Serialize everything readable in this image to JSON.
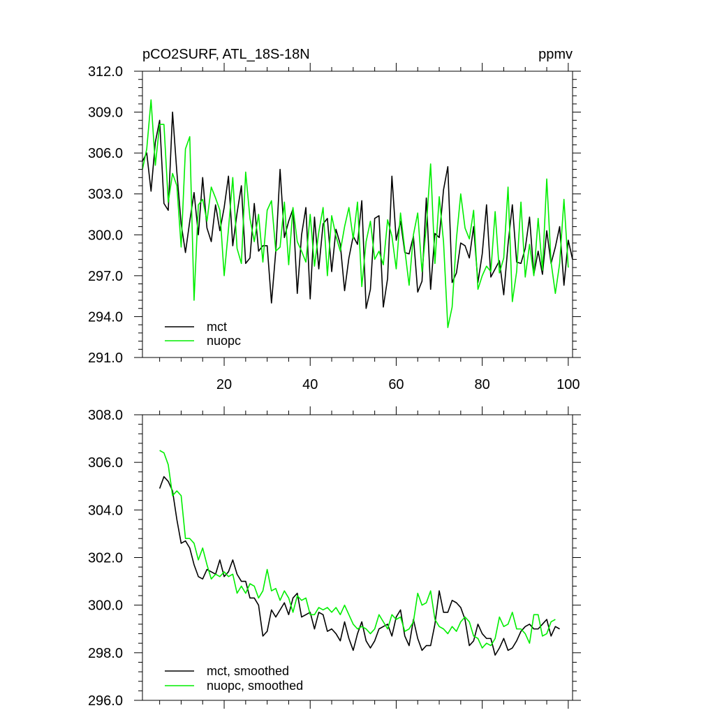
{
  "colors": {
    "mct": "#000000",
    "nuopc": "#00ee00",
    "axis": "#000000",
    "background": "#ffffff"
  },
  "chart_data": [
    {
      "type": "line",
      "title": "pCO2SURF, ATL_18S-18N",
      "units": "ppmv",
      "xlim": [
        1,
        101
      ],
      "ylim": [
        291,
        312
      ],
      "yticks": [
        291,
        294,
        297,
        300,
        303,
        306,
        309,
        312
      ],
      "ytick_labels": [
        "291.0",
        "294.0",
        "297.0",
        "300.0",
        "303.0",
        "306.0",
        "309.0",
        "312.0"
      ],
      "xticks": [
        20,
        40,
        60,
        80,
        100
      ],
      "xtick_labels": [
        "20",
        "40",
        "60",
        "80",
        "100"
      ],
      "legend_position": "bottom-left",
      "series": [
        {
          "name": "mct",
          "label": "mct",
          "color": "#000000",
          "x_start": 1,
          "values": [
            305.4,
            306.0,
            303.2,
            306.8,
            308.4,
            302.3,
            301.8,
            309.0,
            304.6,
            300.8,
            298.7,
            301.0,
            303.1,
            300.0,
            304.2,
            300.5,
            299.5,
            302.2,
            300.3,
            302.0,
            304.3,
            299.2,
            301.6,
            303.6,
            297.9,
            298.3,
            302.3,
            298.8,
            299.2,
            299.2,
            295.0,
            298.8,
            304.8,
            299.8,
            301.0,
            301.9,
            295.7,
            300.0,
            302.0,
            295.3,
            301.3,
            297.5,
            300.8,
            301.2,
            297.3,
            300.4,
            299.3,
            295.9,
            298.3,
            299.9,
            299.3,
            302.5,
            294.6,
            296.0,
            301.2,
            301.4,
            294.7,
            296.8,
            304.3,
            299.6,
            301.0,
            298.7,
            298.6,
            299.9,
            295.8,
            296.6,
            302.7,
            296.0,
            300.1,
            299.8,
            303.3,
            305.0,
            296.5,
            297.2,
            299.4,
            299.2,
            298.3,
            300.6,
            296.5,
            298.6,
            302.2,
            296.9,
            297.5,
            298.1,
            295.6,
            299.3,
            302.2,
            298.0,
            297.9,
            299.0,
            301.3,
            297.1,
            298.8,
            297.1,
            300.3,
            297.9,
            299.1,
            300.6,
            296.3,
            299.6,
            298.2
          ]
        },
        {
          "name": "nuopc",
          "label": "nuopc",
          "color": "#00ee00",
          "x_start": 1,
          "values": [
            304.8,
            306.3,
            309.9,
            305.1,
            308.1,
            308.1,
            302.4,
            304.5,
            303.6,
            299.1,
            306.3,
            307.2,
            295.2,
            302.2,
            302.6,
            301.0,
            303.5,
            302.7,
            301.8,
            297.0,
            300.4,
            304.2,
            299.0,
            297.9,
            304.6,
            301.2,
            299.5,
            301.5,
            298.0,
            301.8,
            302.5,
            298.8,
            299.1,
            302.4,
            297.8,
            302.0,
            299.5,
            298.8,
            298.0,
            301.5,
            297.7,
            300.2,
            302.0,
            297.0,
            301.4,
            299.9,
            298.8,
            300.6,
            302.0,
            299.7,
            302.4,
            296.2,
            299.5,
            301.0,
            298.2,
            298.8,
            297.8,
            301.1,
            299.9,
            297.5,
            301.6,
            298.9,
            296.3,
            300.0,
            301.6,
            297.3,
            300.6,
            305.2,
            297.9,
            302.8,
            299.5,
            293.2,
            294.7,
            299.7,
            303.0,
            300.5,
            299.7,
            301.8,
            296.0,
            297.0,
            297.7,
            297.3,
            301.7,
            297.2,
            298.3,
            303.5,
            295.1,
            297.3,
            302.4,
            296.9,
            299.3,
            297.0,
            301.2,
            297.4,
            304.1,
            298.0,
            295.7,
            297.9,
            302.6,
            297.6
          ]
        }
      ]
    },
    {
      "type": "line",
      "title": "",
      "ylim": [
        296,
        308
      ],
      "xlim": [
        1,
        101
      ],
      "yticks": [
        296,
        298,
        300,
        302,
        304,
        306,
        308
      ],
      "ytick_labels": [
        "296.0",
        "298.0",
        "300.0",
        "302.0",
        "304.0",
        "306.0",
        "308.0"
      ],
      "xticks": [
        20,
        40,
        60,
        80,
        100
      ],
      "legend_position": "bottom-left",
      "series": [
        {
          "name": "mct, smoothed",
          "label": "mct, smoothed",
          "color": "#000000",
          "x_start": 5,
          "values": [
            304.9,
            305.4,
            305.2,
            304.8,
            303.6,
            302.6,
            302.7,
            302.4,
            301.7,
            301.2,
            301.1,
            301.5,
            301.4,
            301.3,
            301.9,
            301.2,
            301.4,
            301.9,
            301.3,
            301.0,
            301.0,
            300.3,
            300.3,
            300.0,
            298.7,
            298.9,
            299.8,
            299.5,
            299.8,
            300.1,
            299.6,
            300.3,
            300.5,
            299.5,
            299.6,
            299.7,
            299.0,
            299.7,
            299.6,
            298.9,
            299.0,
            298.8,
            298.5,
            299.3,
            298.6,
            298.1,
            298.8,
            299.3,
            298.5,
            298.2,
            298.5,
            299.0,
            299.1,
            299.2,
            298.7,
            299.5,
            299.8,
            298.7,
            298.3,
            299.4,
            298.6,
            298.1,
            298.3,
            298.3,
            299.2,
            300.6,
            299.7,
            299.7,
            300.2,
            300.1,
            299.9,
            299.4,
            298.3,
            298.5,
            299.2,
            298.8,
            298.6,
            298.6,
            297.9,
            298.2,
            298.6,
            298.1,
            298.2,
            298.5,
            298.9,
            299.1,
            299.2,
            299.0,
            299.0,
            299.2,
            299.4,
            298.7,
            299.1,
            299.0
          ]
        },
        {
          "name": "nuopc, smoothed",
          "label": "nuopc, smoothed",
          "color": "#00ee00",
          "x_start": 5,
          "values": [
            306.5,
            306.4,
            305.9,
            304.6,
            304.8,
            304.6,
            302.8,
            302.8,
            302.6,
            301.9,
            302.4,
            301.7,
            301.1,
            301.3,
            301.2,
            301.4,
            301.2,
            301.3,
            300.5,
            300.8,
            300.5,
            300.9,
            300.8,
            300.3,
            300.6,
            301.5,
            300.6,
            300.7,
            300.2,
            300.6,
            300.3,
            299.7,
            300.4,
            300.2,
            300.3,
            299.6,
            299.6,
            299.9,
            299.8,
            299.9,
            299.7,
            299.9,
            299.6,
            300.0,
            299.6,
            299.2,
            299.0,
            299.1,
            299.0,
            298.8,
            299.0,
            299.6,
            299.3,
            299.0,
            299.6,
            299.4,
            299.5,
            298.9,
            299.0,
            299.3,
            300.5,
            300.0,
            300.1,
            300.6,
            299.4,
            299.1,
            299.0,
            298.8,
            299.1,
            298.9,
            299.3,
            299.5,
            299.3,
            298.7,
            298.6,
            298.2,
            298.4,
            298.3,
            298.6,
            299.5,
            299.1,
            299.2,
            299.7,
            299.0,
            299.0,
            298.8,
            298.4,
            299.6,
            299.6,
            298.7,
            298.8,
            299.3,
            299.4
          ]
        }
      ]
    }
  ]
}
